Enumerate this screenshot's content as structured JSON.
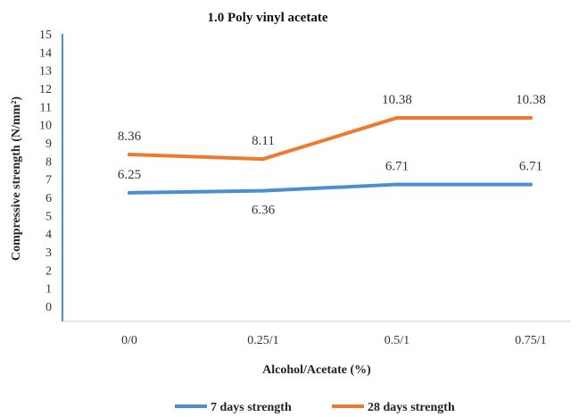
{
  "chart_data": {
    "type": "line",
    "title": "1.0 Poly vinyl acetate",
    "xlabel": "Alcohol/Acetate (%)",
    "ylabel": "Compressive strength (N/mm²)",
    "categories": [
      "0/0",
      "0.25/1",
      "0.5/1",
      "0.75/1"
    ],
    "ylim": [
      0,
      15
    ],
    "yticks": [
      "0",
      "1",
      "2",
      "3",
      "4",
      "5",
      "6",
      "7",
      "8",
      "9",
      "10",
      "11",
      "12",
      "13",
      "14",
      "15"
    ],
    "grid": false,
    "legend_position": "bottom",
    "series": [
      {
        "name": "7 days strength",
        "color": "#4a8fd1",
        "values": [
          6.25,
          6.36,
          6.71,
          6.71
        ],
        "labels": [
          "6.25",
          "6.36",
          "6.71",
          "6.71"
        ],
        "label_side": [
          "above",
          "below",
          "above",
          "above"
        ]
      },
      {
        "name": "28 days strength",
        "color": "#ed7b2f",
        "values": [
          8.36,
          8.11,
          10.38,
          10.38
        ],
        "labels": [
          "8.36",
          "8.11",
          "10.38",
          "10.38"
        ],
        "label_side": [
          "above",
          "above",
          "above",
          "above"
        ]
      }
    ]
  }
}
